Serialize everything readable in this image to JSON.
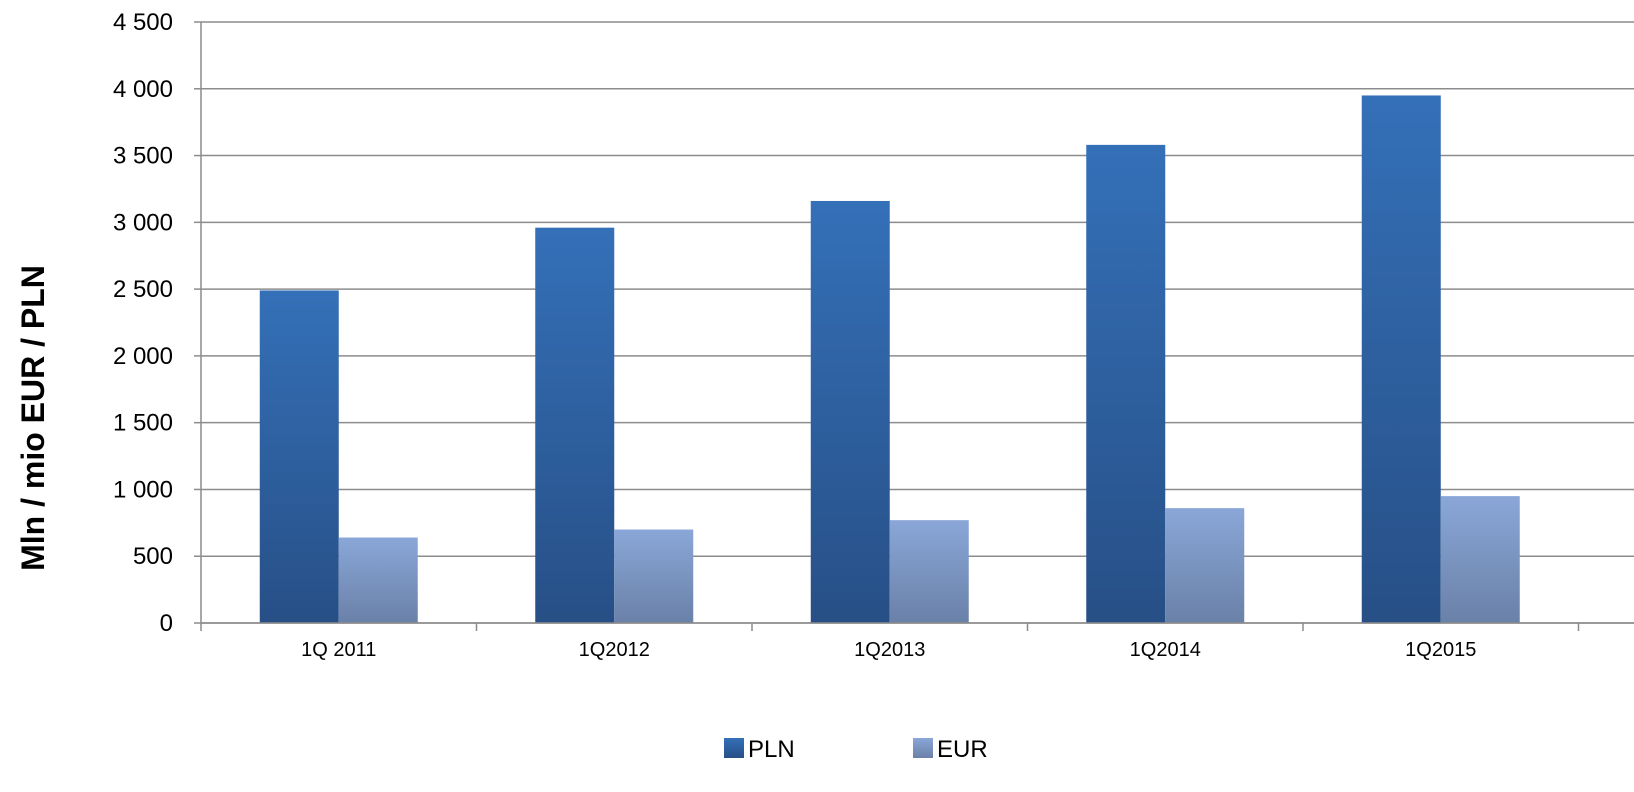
{
  "chart_data": {
    "type": "bar",
    "title": "",
    "xlabel": "",
    "ylabel": "Mln / mio  EUR / PLN",
    "categories": [
      "1Q 2011",
      "1Q2012",
      "1Q2013",
      "1Q2014",
      "1Q2015"
    ],
    "series": [
      {
        "name": "PLN",
        "values": [
          2490,
          2960,
          3160,
          3580,
          3950
        ],
        "color_top": "#3470b8",
        "color_bottom": "#274f86"
      },
      {
        "name": "EUR",
        "values": [
          640,
          700,
          770,
          860,
          950
        ],
        "color_top": "#8aa7d8",
        "color_bottom": "#6a81a8"
      }
    ],
    "ylim": [
      0,
      4500
    ],
    "yticks": [
      0,
      500,
      1000,
      1500,
      2000,
      2500,
      3000,
      3500,
      4000,
      4500
    ],
    "ytick_labels": [
      "0",
      "500",
      "1 000",
      "1 500",
      "2 000",
      "2 500",
      "3 000",
      "3 500",
      "4 000",
      "4 500"
    ],
    "grid": true,
    "legend_position": "bottom-center"
  }
}
